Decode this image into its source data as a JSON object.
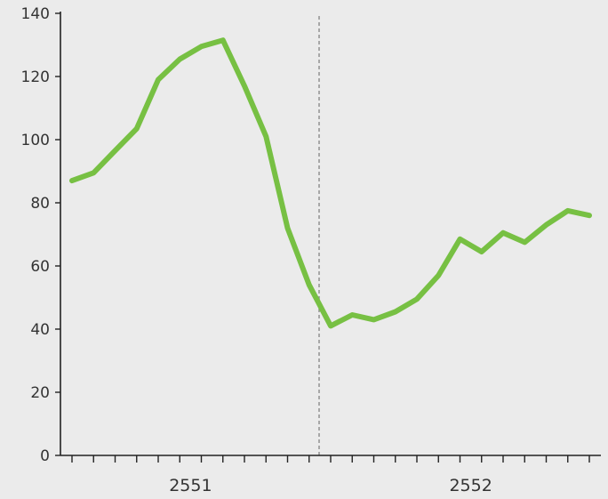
{
  "chart_data": {
    "type": "line",
    "title": "",
    "xlabel": "",
    "ylabel": "",
    "ylim": [
      0,
      140
    ],
    "y_ticks": [
      "0",
      "20",
      "40",
      "60",
      "80",
      "100",
      "120",
      "140"
    ],
    "year_labels": [
      "2551",
      "2552"
    ],
    "divider_after_month": 12,
    "line_color": "#77c043",
    "background": "#ebebeb",
    "series": [
      {
        "values": [
          87,
          89.5,
          96.5,
          103.5,
          119,
          125.5,
          129.5,
          131.5,
          117,
          101,
          72,
          54,
          41,
          44.5,
          43,
          45.5,
          49.5,
          57,
          68.5,
          64.5,
          70.5,
          67.5,
          73,
          77.5,
          76
        ]
      }
    ]
  }
}
